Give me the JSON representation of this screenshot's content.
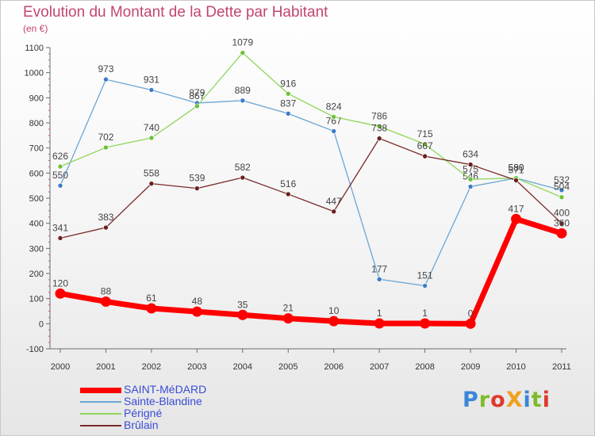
{
  "title": "Evolution du Montant de la Dette par Habitant",
  "subtitle": "(en €)",
  "logo": {
    "text": "ProXiti",
    "colors": [
      "#3a86d8",
      "#7dbb2c",
      "#e0392c",
      "#f0a020",
      "#3a86d8",
      "#7dbb2c",
      "#e0392c"
    ]
  },
  "chart_data": {
    "type": "line",
    "title": "Evolution du Montant de la Dette par Habitant",
    "subtitle": "(en €)",
    "xlabel": "",
    "ylabel": "(en €)",
    "categories": [
      "2000",
      "2001",
      "2002",
      "2003",
      "2004",
      "2005",
      "2006",
      "2007",
      "2008",
      "2009",
      "2010",
      "2011"
    ],
    "ylim": [
      -100,
      1100
    ],
    "yticks": [
      -100,
      0,
      100,
      200,
      300,
      400,
      500,
      600,
      700,
      800,
      900,
      1000,
      1100
    ],
    "grid": false,
    "legend": "bottom-left",
    "series": [
      {
        "name": "SAINT-MéDARD",
        "color": "#ff0000",
        "thick": true,
        "values": [
          120,
          88,
          61,
          48,
          35,
          21,
          10,
          1,
          1,
          0,
          417,
          360
        ]
      },
      {
        "name": "Sainte-Blandine",
        "color": "#6aa6d6",
        "marker": "#3a7cc8",
        "values": [
          550,
          973,
          931,
          879,
          889,
          837,
          767,
          177,
          151,
          546,
          580,
          532
        ]
      },
      {
        "name": "Périgné",
        "color": "#8fd65a",
        "marker": "#6cc23a",
        "values": [
          626,
          702,
          740,
          867,
          1079,
          916,
          824,
          786,
          715,
          575,
          580,
          504
        ]
      },
      {
        "name": "Brûlain",
        "color": "#7a2a2a",
        "marker": "#6a1f1f",
        "values": [
          341,
          383,
          558,
          539,
          582,
          516,
          447,
          738,
          667,
          634,
          571,
          400
        ]
      }
    ]
  }
}
